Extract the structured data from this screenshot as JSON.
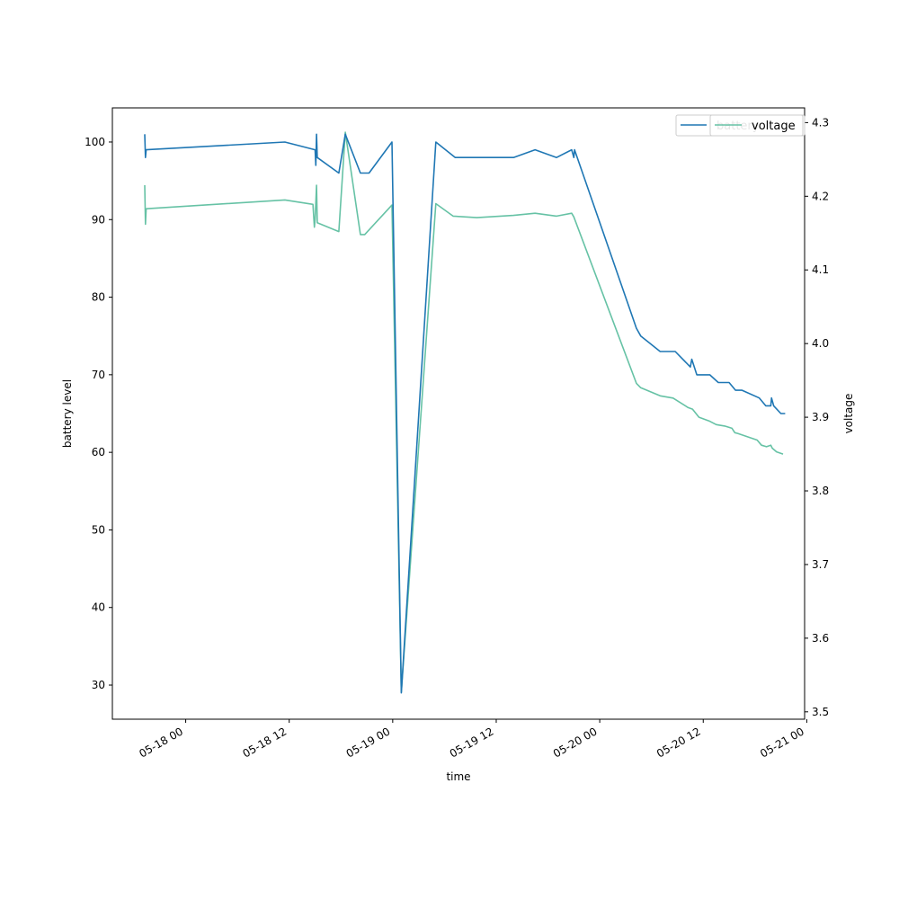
{
  "chart_data": {
    "type": "line",
    "xlabel": "time",
    "ylabel_left": "battery level",
    "ylabel_right": "voltage",
    "xlim": [
      "2021-05-17 15:30",
      "2021-05-20 23:45"
    ],
    "ylim_left": [
      25.6,
      104.4
    ],
    "ylim_right": [
      3.49,
      4.32
    ],
    "x_ticks": [
      {
        "t": "2021-05-18 00:00",
        "label": "05-18 00"
      },
      {
        "t": "2021-05-18 12:00",
        "label": "05-18 12"
      },
      {
        "t": "2021-05-19 00:00",
        "label": "05-19 00"
      },
      {
        "t": "2021-05-19 12:00",
        "label": "05-19 12"
      },
      {
        "t": "2021-05-20 00:00",
        "label": "05-20 00"
      },
      {
        "t": "2021-05-20 12:00",
        "label": "05-20 12"
      },
      {
        "t": "2021-05-21 00:00",
        "label": "05-21 00"
      }
    ],
    "y_ticks_left": [
      30,
      40,
      50,
      60,
      70,
      80,
      90,
      100
    ],
    "y_ticks_right": [
      3.5,
      3.6,
      3.7,
      3.8,
      3.9,
      4.0,
      4.1,
      4.2,
      4.3
    ],
    "legend": {
      "placement": "top-right",
      "entries": [
        "battery",
        "voltage"
      ]
    },
    "series": [
      {
        "name": "battery",
        "axis": "left",
        "color": "#1f77b4",
        "x": [
          "2021-05-17 19:15",
          "2021-05-17 19:20",
          "2021-05-17 19:25",
          "2021-05-18 11:30",
          "2021-05-18 15:00",
          "2021-05-18 15:05",
          "2021-05-18 15:10",
          "2021-05-18 15:15",
          "2021-05-18 17:45",
          "2021-05-18 18:30",
          "2021-05-18 20:15",
          "2021-05-18 21:15",
          "2021-05-18 23:55",
          "2021-05-19 01:00",
          "2021-05-19 05:00",
          "2021-05-19 07:15",
          "2021-05-19 10:00",
          "2021-05-19 14:00",
          "2021-05-19 16:30",
          "2021-05-19 19:00",
          "2021-05-19 20:45",
          "2021-05-19 21:00",
          "2021-05-19 21:05",
          "2021-05-20 04:15",
          "2021-05-20 04:45",
          "2021-05-20 07:00",
          "2021-05-20 08:45",
          "2021-05-20 10:30",
          "2021-05-20 10:40",
          "2021-05-20 11:15",
          "2021-05-20 12:45",
          "2021-05-20 13:45",
          "2021-05-20 15:00",
          "2021-05-20 15:45",
          "2021-05-20 16:30",
          "2021-05-20 18:30",
          "2021-05-20 19:15",
          "2021-05-20 19:50",
          "2021-05-20 19:55",
          "2021-05-20 20:10",
          "2021-05-20 21:00",
          "2021-05-20 21:30"
        ],
        "values": [
          101,
          98,
          99,
          100,
          99,
          97,
          101,
          98,
          96,
          101,
          96,
          96,
          100,
          29,
          100,
          98,
          98,
          98,
          99,
          98,
          99,
          98,
          99,
          76,
          75,
          73,
          73,
          71,
          72,
          70,
          70,
          69,
          69,
          68,
          68,
          67,
          66,
          66,
          67,
          66,
          65,
          65
        ]
      },
      {
        "name": "voltage",
        "axis": "right",
        "color": "#66c2a5",
        "x": [
          "2021-05-17 19:15",
          "2021-05-17 19:20",
          "2021-05-17 19:25",
          "2021-05-18 11:30",
          "2021-05-18 14:45",
          "2021-05-18 14:55",
          "2021-05-18 15:00",
          "2021-05-18 15:10",
          "2021-05-18 15:15",
          "2021-05-18 17:45",
          "2021-05-18 18:30",
          "2021-05-18 20:15",
          "2021-05-18 20:45",
          "2021-05-18 23:55",
          "2021-05-19 01:00",
          "2021-05-19 05:00",
          "2021-05-19 07:00",
          "2021-05-19 09:45",
          "2021-05-19 14:00",
          "2021-05-19 16:30",
          "2021-05-19 19:00",
          "2021-05-19 20:45",
          "2021-05-19 21:00",
          "2021-05-20 04:15",
          "2021-05-20 04:45",
          "2021-05-20 07:00",
          "2021-05-20 08:30",
          "2021-05-20 10:15",
          "2021-05-20 10:45",
          "2021-05-20 11:30",
          "2021-05-20 12:40",
          "2021-05-20 13:30",
          "2021-05-20 14:30",
          "2021-05-20 15:20",
          "2021-05-20 15:40",
          "2021-05-20 16:00",
          "2021-05-20 18:15",
          "2021-05-20 18:45",
          "2021-05-20 19:20",
          "2021-05-20 19:50",
          "2021-05-20 20:00",
          "2021-05-20 20:30",
          "2021-05-20 21:15"
        ],
        "values": [
          4.215,
          4.162,
          4.183,
          4.195,
          4.189,
          4.158,
          4.168,
          4.215,
          4.164,
          4.152,
          4.287,
          4.148,
          4.148,
          4.188,
          3.527,
          4.19,
          4.173,
          4.171,
          4.174,
          4.177,
          4.173,
          4.177,
          4.172,
          3.946,
          3.94,
          3.929,
          3.926,
          3.913,
          3.911,
          3.9,
          3.895,
          3.89,
          3.888,
          3.885,
          3.879,
          3.878,
          3.869,
          3.862,
          3.86,
          3.862,
          3.858,
          3.853,
          3.85
        ]
      }
    ]
  }
}
